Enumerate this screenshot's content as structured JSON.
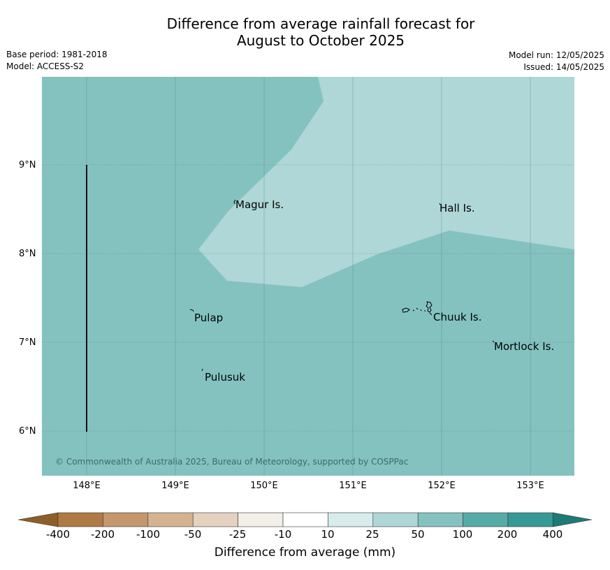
{
  "title": {
    "line1": "Difference from average rainfall forecast for",
    "line2": "August to October 2025"
  },
  "meta_left": {
    "base_period": "Base period: 1981-2018",
    "model": "Model: ACCESS-S2"
  },
  "meta_right": {
    "model_run": "Model run: 12/05/2025",
    "issued": "Issued: 14/05/2025"
  },
  "map": {
    "background_color": "#84c2c0",
    "region_color": "#afd7d7",
    "x_ticks": [
      "148°E",
      "149°E",
      "150°E",
      "151°E",
      "152°E",
      "153°E"
    ],
    "y_ticks": [
      "9°N",
      "8°N",
      "7°N",
      "6°N"
    ],
    "places": [
      "Magur Is.",
      "Hall Is.",
      "Pulap",
      "Chuuk Is.",
      "Mortlock Is.",
      "Pulusuk"
    ],
    "copyright": "© Commonwealth of Australia 2025, Bureau of Meteorology, supported by COSPPac"
  },
  "colorbar": {
    "labels": [
      "-400",
      "-200",
      "-100",
      "-50",
      "-25",
      "-10",
      "10",
      "25",
      "50",
      "100",
      "200",
      "400"
    ],
    "colors": [
      "#8e5e2a",
      "#b07a44",
      "#c4976c",
      "#d5b391",
      "#e4d1bf",
      "#f2efe9",
      "#ffffff",
      "#d8ecec",
      "#afd7d7",
      "#84c2c0",
      "#57aba7",
      "#359a96",
      "#1e7a76"
    ],
    "title": "Difference from average (mm)"
  }
}
